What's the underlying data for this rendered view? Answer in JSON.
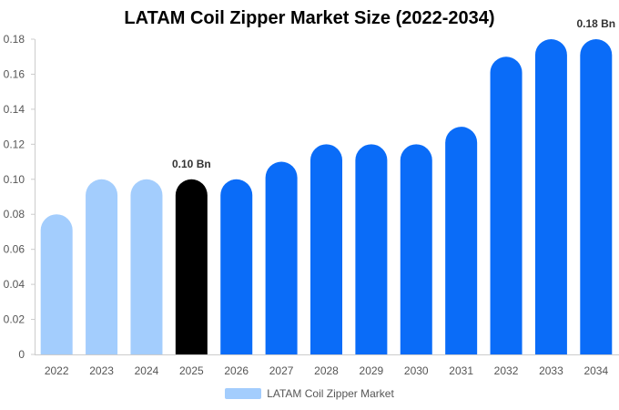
{
  "chart_data": {
    "type": "bar",
    "title": "LATAM Coil Zipper Market Size (2022-2034)",
    "xlabel": "",
    "ylabel": "",
    "categories": [
      "2022",
      "2023",
      "2024",
      "2025",
      "2026",
      "2027",
      "2028",
      "2029",
      "2030",
      "2031",
      "2032",
      "2033",
      "2034"
    ],
    "series": [
      {
        "name": "LATAM Coil Zipper Market",
        "values": [
          0.08,
          0.1,
          0.1,
          0.1,
          0.1,
          0.11,
          0.12,
          0.12,
          0.12,
          0.13,
          0.17,
          0.18,
          0.18
        ]
      }
    ],
    "bar_colors": [
      "#a3cdfd",
      "#a3cdfd",
      "#a3cdfd",
      "#000000",
      "#0a6cf8",
      "#0a6cf8",
      "#0a6cf8",
      "#0a6cf8",
      "#0a6cf8",
      "#0a6cf8",
      "#0a6cf8",
      "#0a6cf8",
      "#0a6cf8"
    ],
    "legend_color": "#a3cdfd",
    "ylim": [
      0,
      0.18
    ],
    "yticks": [
      "0",
      "0.02",
      "0.04",
      "0.06",
      "0.08",
      "0.10",
      "0.12",
      "0.14",
      "0.16",
      "0.18"
    ],
    "annotations": [
      {
        "category": "2025",
        "text": "0.10 Bn"
      },
      {
        "category": "2034",
        "text": "0.18 Bn"
      }
    ],
    "grid": false,
    "legend_position": "bottom"
  }
}
